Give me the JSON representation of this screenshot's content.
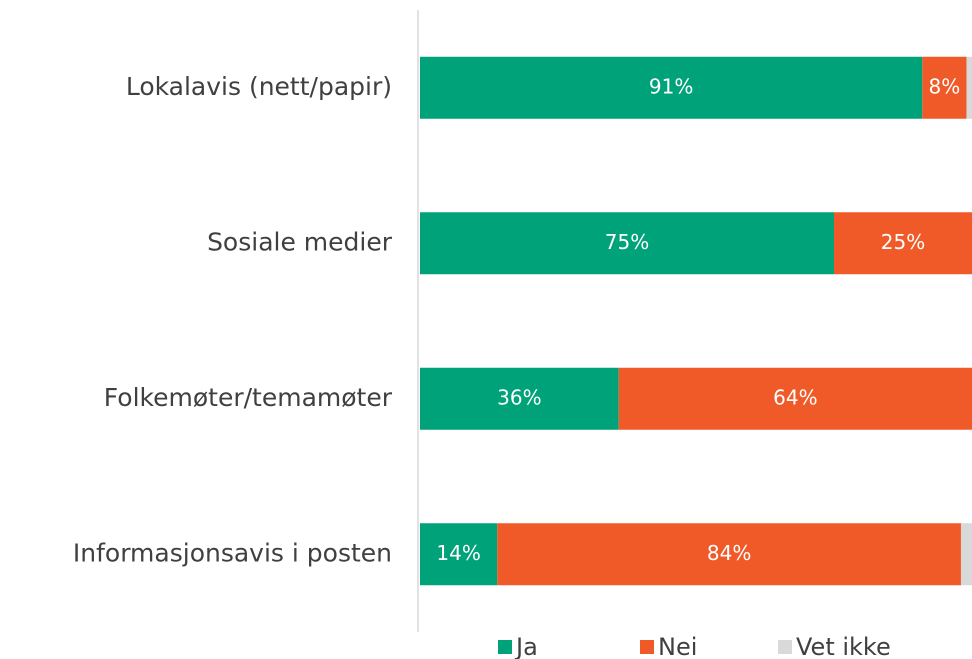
{
  "chart_data": {
    "type": "stacked-bar-horizontal",
    "categories": [
      "Lokalavis (nett/papir)",
      "Sosiale medier",
      "Folkemøter/temamøter",
      "Informasjonsavis i posten"
    ],
    "series": [
      {
        "name": "Ja",
        "color": "#00a27a",
        "values": [
          91,
          75,
          36,
          14
        ],
        "value_labels": [
          "91%",
          "75%",
          "36%",
          "14%"
        ]
      },
      {
        "name": "Nei",
        "color": "#f05a28",
        "values": [
          8,
          25,
          64,
          84
        ],
        "value_labels": [
          "8%",
          "25%",
          "64%",
          "84%"
        ]
      },
      {
        "name": "Vet ikke",
        "color": "#d9d9d9",
        "values": [
          1,
          0,
          0,
          2
        ]
      }
    ],
    "xlim": [
      0,
      100
    ],
    "legend": "bottom"
  }
}
